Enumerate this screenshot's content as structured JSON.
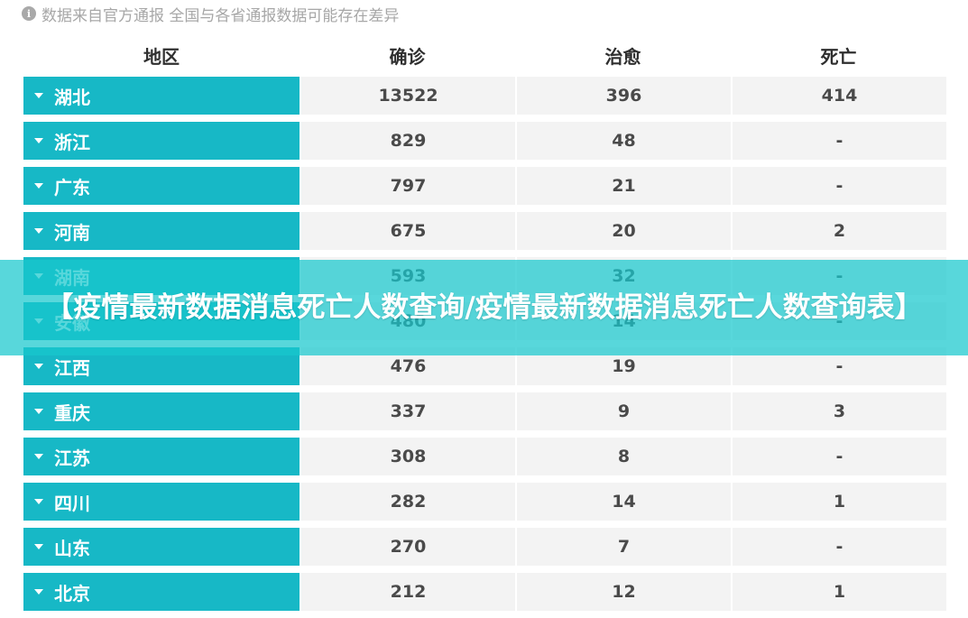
{
  "notice": {
    "icon": "info-icon",
    "text": "数据来自官方通报 全国与各省通报数据可能存在差异"
  },
  "table": {
    "headers": [
      "地区",
      "确诊",
      "治愈",
      "死亡"
    ],
    "rows": [
      {
        "region": "湖北",
        "confirmed": "13522",
        "cured": "396",
        "dead": "414"
      },
      {
        "region": "浙江",
        "confirmed": "829",
        "cured": "48",
        "dead": "-"
      },
      {
        "region": "广东",
        "confirmed": "797",
        "cured": "21",
        "dead": "-"
      },
      {
        "region": "河南",
        "confirmed": "675",
        "cured": "20",
        "dead": "2"
      },
      {
        "region": "湖南",
        "confirmed": "593",
        "cured": "32",
        "dead": "-"
      },
      {
        "region": "安徽",
        "confirmed": "480",
        "cured": "14",
        "dead": "-"
      },
      {
        "region": "江西",
        "confirmed": "476",
        "cured": "19",
        "dead": "-"
      },
      {
        "region": "重庆",
        "confirmed": "337",
        "cured": "9",
        "dead": "3"
      },
      {
        "region": "江苏",
        "confirmed": "308",
        "cured": "8",
        "dead": "-"
      },
      {
        "region": "四川",
        "confirmed": "282",
        "cured": "14",
        "dead": "1"
      },
      {
        "region": "山东",
        "confirmed": "270",
        "cured": "7",
        "dead": "-"
      },
      {
        "region": "北京",
        "confirmed": "212",
        "cured": "12",
        "dead": "1"
      }
    ]
  },
  "banner": {
    "text": "【疫情最新数据消息死亡人数查询/疫情最新数据消息死亡人数查询表】"
  },
  "colors": {
    "accent": "#17b8c6",
    "cell_bg": "#f3f3f3",
    "banner_bg": "rgba(23,200,205,0.72)"
  }
}
